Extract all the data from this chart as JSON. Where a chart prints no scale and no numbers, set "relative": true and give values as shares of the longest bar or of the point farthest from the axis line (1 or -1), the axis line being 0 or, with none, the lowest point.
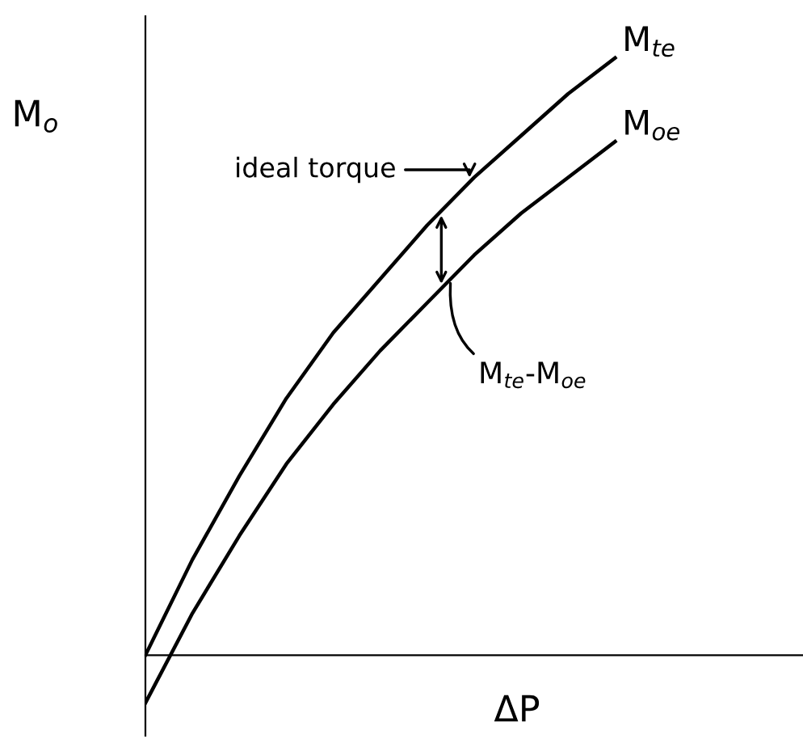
{
  "chart_data": {
    "type": "line",
    "relative": true,
    "legend": false,
    "xlabel": "ΔP",
    "ylabel": "M$_{o}$",
    "categories": [
      null,
      null,
      null,
      null,
      null,
      null,
      null,
      null,
      null,
      null,
      null
    ],
    "series": [
      {
        "name": "M$_{te}$",
        "color": "#000000",
        "values": [
          0,
          0.16,
          0.3,
          0.43,
          0.54,
          0.63,
          0.72,
          0.8,
          0.87,
          0.94,
          1.0
        ]
      },
      {
        "name": "M$_{oe}$",
        "color": "#000000",
        "values": [
          -0.08,
          0.07,
          0.2,
          0.32,
          0.42,
          0.51,
          0.59,
          0.67,
          0.74,
          0.8,
          0.86
        ]
      }
    ],
    "annotations": [
      "ideal torque",
      "M$_{te}$-M$_{oe}$"
    ]
  }
}
